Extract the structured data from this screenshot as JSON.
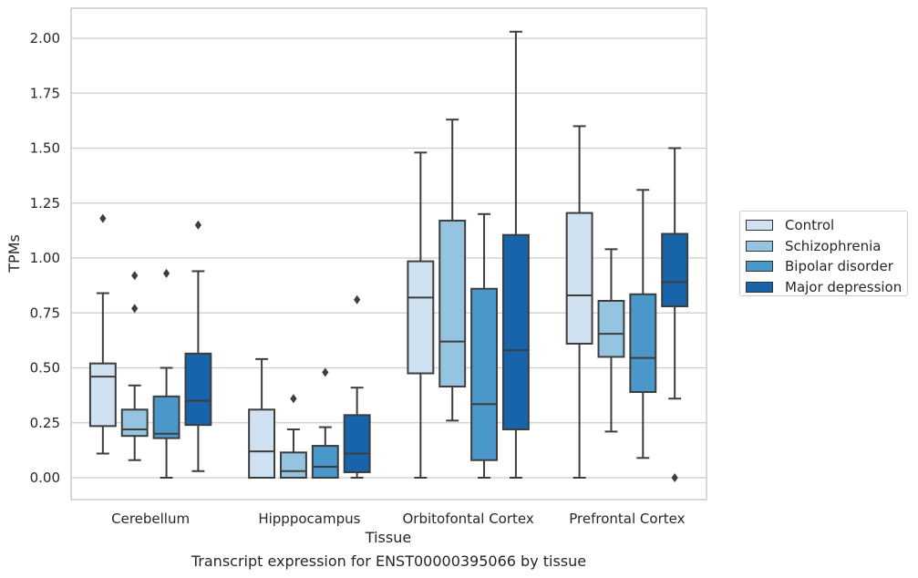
{
  "caption": "Transcript expression for ENST00000395066 by tissue",
  "chart_data": {
    "type": "box",
    "xlabel": "Tissue",
    "ylabel": "TPMs",
    "ylim": [
      -0.1,
      2.14
    ],
    "yticks": [
      "0.00",
      "0.25",
      "0.50",
      "0.75",
      "1.00",
      "1.25",
      "1.50",
      "1.75",
      "2.00"
    ],
    "ytick_values": [
      0,
      0.25,
      0.5,
      0.75,
      1.0,
      1.25,
      1.5,
      1.75,
      2.0
    ],
    "grid": true,
    "legend_position": "right-outside",
    "categories": [
      "Cerebellum",
      "Hipppocampus",
      "Orbitofontal Cortex",
      "Prefrontal Cortex"
    ],
    "series": [
      {
        "name": "Control",
        "color": "#d0e1f2",
        "boxes": [
          {
            "whislo": 0.11,
            "q1": 0.235,
            "med": 0.46,
            "q3": 0.52,
            "whishi": 0.84,
            "fliers": [
              1.18
            ]
          },
          {
            "whislo": 0.0,
            "q1": 0.0,
            "med": 0.12,
            "q3": 0.31,
            "whishi": 0.54,
            "fliers": []
          },
          {
            "whislo": 0.0,
            "q1": 0.475,
            "med": 0.82,
            "q3": 0.985,
            "whishi": 1.48,
            "fliers": []
          },
          {
            "whislo": 0.0,
            "q1": 0.61,
            "med": 0.83,
            "q3": 1.205,
            "whishi": 1.6,
            "fliers": []
          }
        ]
      },
      {
        "name": "Schizophrenia",
        "color": "#94c4df",
        "boxes": [
          {
            "whislo": 0.08,
            "q1": 0.19,
            "med": 0.22,
            "q3": 0.31,
            "whishi": 0.42,
            "fliers": [
              0.77,
              0.92
            ]
          },
          {
            "whislo": 0.0,
            "q1": 0.0,
            "med": 0.03,
            "q3": 0.115,
            "whishi": 0.22,
            "fliers": [
              0.36
            ]
          },
          {
            "whislo": 0.26,
            "q1": 0.415,
            "med": 0.62,
            "q3": 1.17,
            "whishi": 1.63,
            "fliers": []
          },
          {
            "whislo": 0.21,
            "q1": 0.55,
            "med": 0.655,
            "q3": 0.805,
            "whishi": 1.04,
            "fliers": []
          }
        ]
      },
      {
        "name": "Bipolar disorder",
        "color": "#4a98c9",
        "boxes": [
          {
            "whislo": 0.0,
            "q1": 0.18,
            "med": 0.2,
            "q3": 0.37,
            "whishi": 0.5,
            "fliers": [
              0.93
            ]
          },
          {
            "whislo": 0.0,
            "q1": 0.0,
            "med": 0.05,
            "q3": 0.145,
            "whishi": 0.23,
            "fliers": [
              0.48
            ]
          },
          {
            "whislo": 0.0,
            "q1": 0.08,
            "med": 0.335,
            "q3": 0.86,
            "whishi": 1.2,
            "fliers": []
          },
          {
            "whislo": 0.09,
            "q1": 0.39,
            "med": 0.545,
            "q3": 0.835,
            "whishi": 1.31,
            "fliers": []
          }
        ]
      },
      {
        "name": "Major depression",
        "color": "#1764ab",
        "boxes": [
          {
            "whislo": 0.03,
            "q1": 0.24,
            "med": 0.35,
            "q3": 0.565,
            "whishi": 0.94,
            "fliers": [
              1.15
            ]
          },
          {
            "whislo": 0.0,
            "q1": 0.025,
            "med": 0.11,
            "q3": 0.285,
            "whishi": 0.41,
            "fliers": [
              0.81
            ]
          },
          {
            "whislo": 0.0,
            "q1": 0.22,
            "med": 0.58,
            "q3": 1.105,
            "whishi": 2.03,
            "fliers": []
          },
          {
            "whislo": 0.36,
            "q1": 0.78,
            "med": 0.89,
            "q3": 1.11,
            "whishi": 1.5,
            "fliers": [
              0.0
            ]
          }
        ]
      }
    ]
  }
}
